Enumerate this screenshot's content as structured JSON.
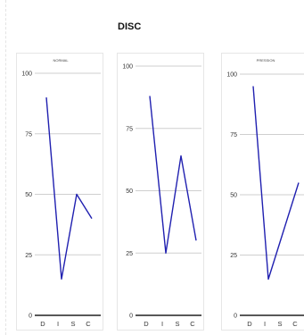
{
  "title": "DISC",
  "chart_data": [
    {
      "type": "line",
      "title": "NORMAL",
      "categories": [
        "D",
        "I",
        "S",
        "C"
      ],
      "values": [
        90,
        15,
        50,
        40
      ],
      "ylim": [
        0,
        100
      ],
      "yticks": [
        0,
        25,
        50,
        75,
        100
      ],
      "grid": true,
      "color": "#2020b0"
    },
    {
      "type": "line",
      "title": "",
      "categories": [
        "D",
        "I",
        "S",
        "C"
      ],
      "values": [
        88,
        25,
        64,
        30
      ],
      "ylim": [
        0,
        100
      ],
      "yticks": [
        0,
        25,
        50,
        75,
        100
      ],
      "grid": true,
      "color": "#2020b0"
    },
    {
      "type": "line",
      "title": "PRESSION",
      "categories": [
        "D",
        "I",
        "S",
        "C"
      ],
      "values": [
        95,
        15,
        35,
        55
      ],
      "ylim": [
        0,
        100
      ],
      "yticks": [
        0,
        25,
        50,
        75,
        100
      ],
      "grid": true,
      "color": "#2020b0"
    }
  ]
}
